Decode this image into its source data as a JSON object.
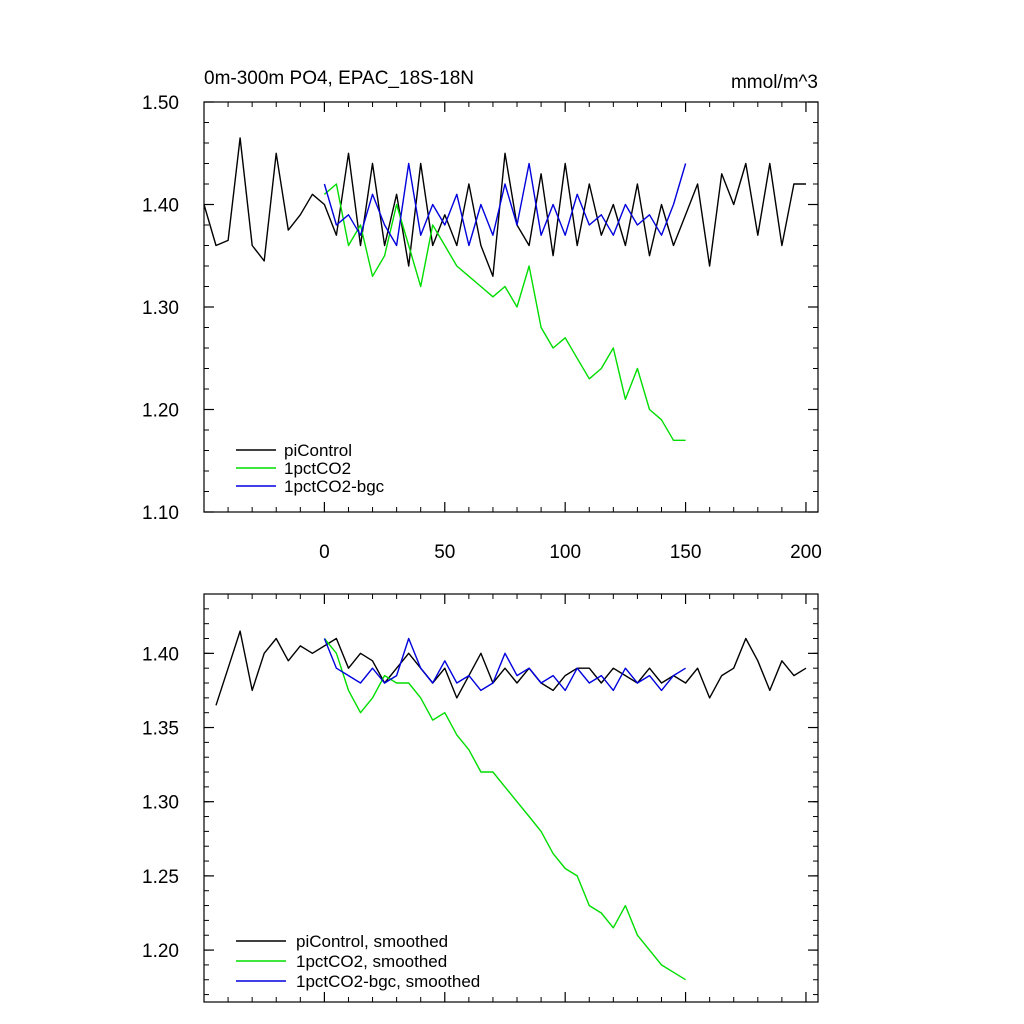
{
  "chart_data": [
    {
      "type": "line",
      "title": "0m-300m PO4, EPAC_18S-18N",
      "units": "mmol/m^3",
      "xlim": [
        -50,
        205
      ],
      "ylim": [
        1.1,
        1.5
      ],
      "yticks": [
        "1.10",
        "1.20",
        "1.30",
        "1.40",
        "1.50"
      ],
      "xticks": [
        "0",
        "50",
        "100",
        "150",
        "200"
      ],
      "legend": "bottom-left",
      "series": [
        {
          "name": "piControl",
          "color": "#000000",
          "x": [
            -50,
            -45,
            -40,
            -35,
            -30,
            -25,
            -20,
            -15,
            -10,
            -5,
            0,
            5,
            10,
            15,
            20,
            25,
            30,
            35,
            40,
            45,
            50,
            55,
            60,
            65,
            70,
            75,
            80,
            85,
            90,
            95,
            100,
            105,
            110,
            115,
            120,
            125,
            130,
            135,
            140,
            145,
            150,
            155,
            160,
            165,
            170,
            175,
            180,
            185,
            190,
            195,
            200
          ],
          "y": [
            1.4,
            1.36,
            1.365,
            1.465,
            1.36,
            1.345,
            1.45,
            1.375,
            1.39,
            1.41,
            1.4,
            1.37,
            1.45,
            1.36,
            1.44,
            1.36,
            1.41,
            1.34,
            1.44,
            1.36,
            1.39,
            1.36,
            1.42,
            1.36,
            1.33,
            1.45,
            1.38,
            1.36,
            1.43,
            1.35,
            1.44,
            1.36,
            1.42,
            1.37,
            1.4,
            1.36,
            1.42,
            1.35,
            1.4,
            1.36,
            1.39,
            1.42,
            1.34,
            1.43,
            1.4,
            1.44,
            1.37,
            1.44,
            1.36,
            1.42,
            1.42
          ]
        },
        {
          "name": "1pctCO2",
          "color": "#00dd00",
          "x": [
            0,
            5,
            10,
            15,
            20,
            25,
            30,
            35,
            40,
            45,
            50,
            55,
            60,
            65,
            70,
            75,
            80,
            85,
            90,
            95,
            100,
            105,
            110,
            115,
            120,
            125,
            130,
            135,
            140,
            145,
            150
          ],
          "y": [
            1.41,
            1.42,
            1.36,
            1.38,
            1.33,
            1.35,
            1.4,
            1.36,
            1.32,
            1.38,
            1.36,
            1.34,
            1.33,
            1.32,
            1.31,
            1.32,
            1.3,
            1.34,
            1.28,
            1.26,
            1.27,
            1.25,
            1.23,
            1.24,
            1.26,
            1.21,
            1.24,
            1.2,
            1.19,
            1.17,
            1.17
          ]
        },
        {
          "name": "1pctCO2-bgc",
          "color": "#0000dd",
          "x": [
            0,
            5,
            10,
            15,
            20,
            25,
            30,
            35,
            40,
            45,
            50,
            55,
            60,
            65,
            70,
            75,
            80,
            85,
            90,
            95,
            100,
            105,
            110,
            115,
            120,
            125,
            130,
            135,
            140,
            145,
            150
          ],
          "y": [
            1.42,
            1.38,
            1.39,
            1.37,
            1.41,
            1.38,
            1.36,
            1.44,
            1.37,
            1.4,
            1.38,
            1.41,
            1.36,
            1.4,
            1.37,
            1.42,
            1.38,
            1.44,
            1.37,
            1.4,
            1.37,
            1.41,
            1.38,
            1.39,
            1.37,
            1.4,
            1.38,
            1.39,
            1.37,
            1.4,
            1.44
          ]
        }
      ]
    },
    {
      "type": "line",
      "title": "",
      "xlim": [
        -50,
        205
      ],
      "ylim": [
        1.165,
        1.44
      ],
      "yticks": [
        "1.20",
        "1.25",
        "1.30",
        "1.35",
        "1.40"
      ],
      "legend": "bottom-left",
      "series": [
        {
          "name": "piControl, smoothed",
          "color": "#000000",
          "x": [
            -45,
            -40,
            -35,
            -30,
            -25,
            -20,
            -15,
            -10,
            -5,
            0,
            5,
            10,
            15,
            20,
            25,
            30,
            35,
            40,
            45,
            50,
            55,
            60,
            65,
            70,
            75,
            80,
            85,
            90,
            95,
            100,
            105,
            110,
            115,
            120,
            125,
            130,
            135,
            140,
            145,
            150,
            155,
            160,
            165,
            170,
            175,
            180,
            185,
            190,
            195,
            200
          ],
          "y": [
            1.365,
            1.39,
            1.415,
            1.375,
            1.4,
            1.41,
            1.395,
            1.405,
            1.4,
            1.405,
            1.41,
            1.39,
            1.4,
            1.395,
            1.38,
            1.39,
            1.4,
            1.39,
            1.38,
            1.39,
            1.37,
            1.385,
            1.4,
            1.38,
            1.39,
            1.38,
            1.39,
            1.38,
            1.375,
            1.385,
            1.39,
            1.39,
            1.38,
            1.39,
            1.385,
            1.38,
            1.39,
            1.38,
            1.385,
            1.38,
            1.39,
            1.37,
            1.385,
            1.39,
            1.41,
            1.395,
            1.375,
            1.395,
            1.385,
            1.39
          ]
        },
        {
          "name": "1pctCO2, smoothed",
          "color": "#00dd00",
          "x": [
            0,
            5,
            10,
            15,
            20,
            25,
            30,
            35,
            40,
            45,
            50,
            55,
            60,
            65,
            70,
            75,
            80,
            85,
            90,
            95,
            100,
            105,
            110,
            115,
            120,
            125,
            130,
            135,
            140,
            145,
            150
          ],
          "y": [
            1.41,
            1.4,
            1.375,
            1.36,
            1.37,
            1.385,
            1.38,
            1.38,
            1.37,
            1.355,
            1.36,
            1.345,
            1.335,
            1.32,
            1.32,
            1.31,
            1.3,
            1.29,
            1.28,
            1.265,
            1.255,
            1.25,
            1.23,
            1.225,
            1.215,
            1.23,
            1.21,
            1.2,
            1.19,
            1.185,
            1.18
          ]
        },
        {
          "name": "1pctCO2-bgc, smoothed",
          "color": "#0000dd",
          "x": [
            0,
            5,
            10,
            15,
            20,
            25,
            30,
            35,
            40,
            45,
            50,
            55,
            60,
            65,
            70,
            75,
            80,
            85,
            90,
            95,
            100,
            105,
            110,
            115,
            120,
            125,
            130,
            135,
            140,
            145,
            150
          ],
          "y": [
            1.41,
            1.39,
            1.385,
            1.38,
            1.39,
            1.38,
            1.385,
            1.41,
            1.39,
            1.38,
            1.395,
            1.38,
            1.385,
            1.375,
            1.38,
            1.4,
            1.385,
            1.39,
            1.38,
            1.385,
            1.375,
            1.39,
            1.38,
            1.385,
            1.375,
            1.39,
            1.38,
            1.385,
            1.375,
            1.385,
            1.39
          ]
        }
      ]
    }
  ]
}
